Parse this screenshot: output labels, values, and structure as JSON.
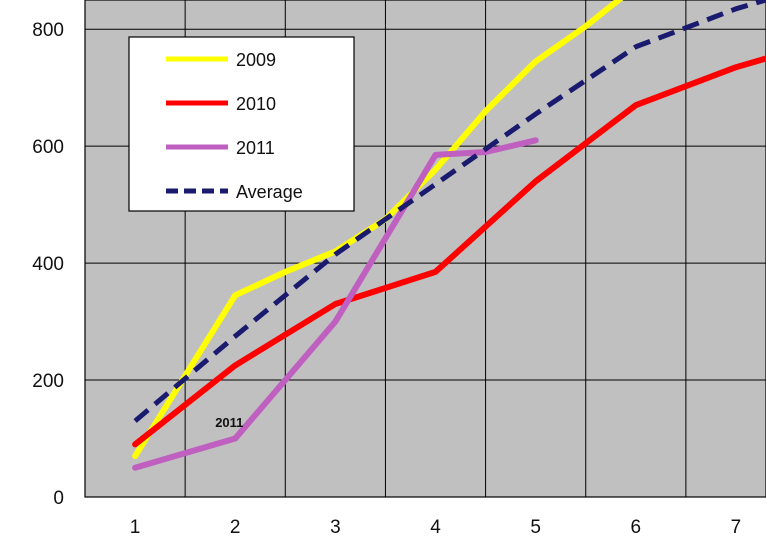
{
  "chart_data": {
    "type": "line",
    "title": "",
    "xlabel": "",
    "ylabel": "",
    "x": [
      1,
      2,
      3,
      4,
      5,
      6,
      7
    ],
    "xlim": [
      0.5,
      7.3
    ],
    "ylim": [
      0,
      800
    ],
    "x_ticks": [
      "1",
      "2",
      "3",
      "4",
      "5",
      "6",
      "7"
    ],
    "y_ticks": [
      "0",
      "200",
      "400",
      "600",
      "800"
    ],
    "grid": true,
    "plot_background": "#c0c0c0",
    "legend_position": "top-left",
    "series": [
      {
        "name": "2009",
        "color": "#ffff00",
        "dash": "solid",
        "points": [
          [
            1,
            70
          ],
          [
            2,
            345
          ],
          [
            2.5,
            385
          ],
          [
            3,
            420
          ],
          [
            3.5,
            475
          ],
          [
            4,
            560
          ],
          [
            4.5,
            660
          ],
          [
            5,
            745
          ],
          [
            5.5,
            805
          ],
          [
            5.9,
            860
          ]
        ]
      },
      {
        "name": "2010",
        "color": "#ff0000",
        "dash": "solid",
        "points": [
          [
            1,
            90
          ],
          [
            2,
            225
          ],
          [
            3,
            330
          ],
          [
            4,
            385
          ],
          [
            5,
            540
          ],
          [
            6,
            670
          ],
          [
            7,
            735
          ],
          [
            7.3,
            750
          ]
        ]
      },
      {
        "name": "2011",
        "color": "#bf5fbf",
        "dash": "solid",
        "points": [
          [
            1,
            50
          ],
          [
            2,
            100
          ],
          [
            3,
            300
          ],
          [
            4,
            585
          ],
          [
            4.5,
            590
          ],
          [
            5,
            610
          ]
        ]
      },
      {
        "name": "Average",
        "color": "#1a1a6e",
        "dash": "dashed",
        "points": [
          [
            1,
            130
          ],
          [
            2,
            275
          ],
          [
            3,
            415
          ],
          [
            4,
            535
          ],
          [
            5,
            655
          ],
          [
            6,
            770
          ],
          [
            7,
            835
          ],
          [
            7.3,
            850
          ]
        ]
      }
    ],
    "annotations": [
      {
        "text": "2011",
        "x": 1.8,
        "y": 120
      }
    ]
  }
}
